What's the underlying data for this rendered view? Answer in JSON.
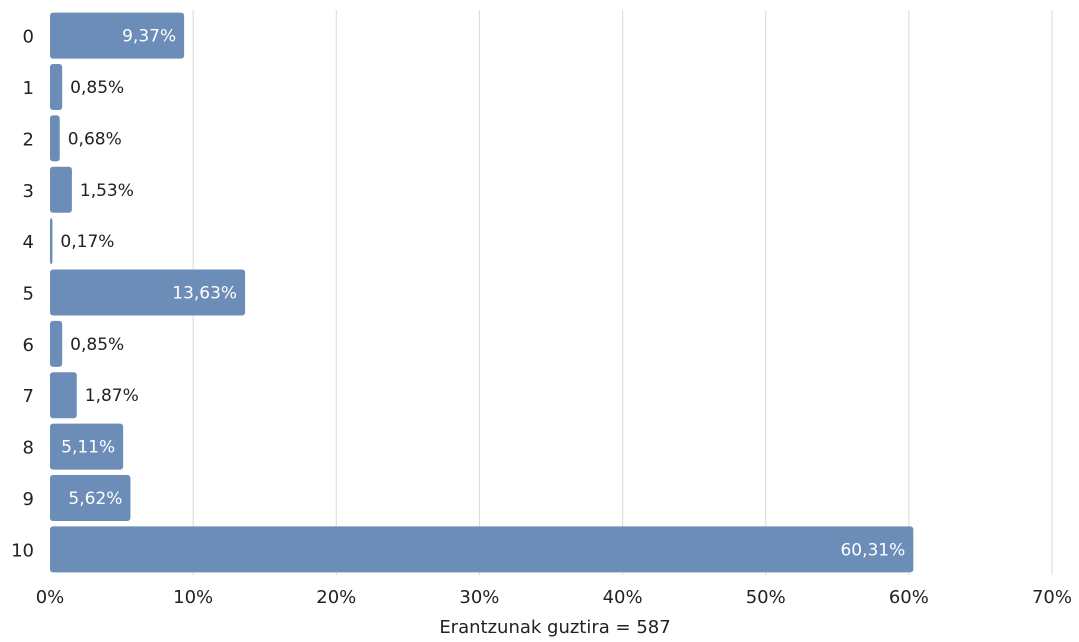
{
  "chart_data": {
    "type": "bar",
    "orientation": "horizontal",
    "categories": [
      "0",
      "1",
      "2",
      "3",
      "4",
      "5",
      "6",
      "7",
      "8",
      "9",
      "10"
    ],
    "values": [
      9.37,
      0.85,
      0.68,
      1.53,
      0.17,
      13.63,
      0.85,
      1.87,
      5.11,
      5.62,
      60.31
    ],
    "value_labels": [
      "9,37%",
      "0,85%",
      "0,68%",
      "1,53%",
      "0,17%",
      "13,63%",
      "0,85%",
      "1,87%",
      "5,11%",
      "5,62%",
      "60,31%"
    ],
    "x_ticks": [
      "0%",
      "10%",
      "20%",
      "30%",
      "40%",
      "50%",
      "60%",
      "70%"
    ],
    "xlim": [
      0,
      70
    ],
    "xlabel": "Erantzunak guztira = 587",
    "grid": true,
    "colors": {
      "bar": "#6b8db8",
      "grid": "#d9d9d9",
      "label_inside": "#ffffff",
      "label_outside": "#222222"
    }
  }
}
